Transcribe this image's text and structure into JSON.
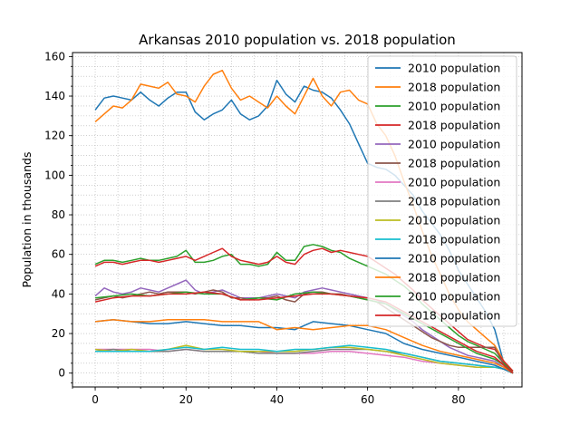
{
  "chart_data": {
    "type": "line",
    "title": "Arkansas 2010 population vs. 2018 population",
    "xlabel": "",
    "ylabel": "Population in thousands",
    "xlim": [
      -5,
      94
    ],
    "ylim": [
      -7,
      162
    ],
    "xticks": [
      0,
      20,
      40,
      60,
      80
    ],
    "yticks": [
      0,
      20,
      40,
      60,
      80,
      100,
      120,
      140,
      160
    ],
    "grid": true,
    "legend_position": "upper-right",
    "series": [
      {
        "name": "2010 population",
        "color": "#1f77b4",
        "x": [
          0,
          2,
          4,
          6,
          8,
          10,
          12,
          14,
          16,
          18,
          20,
          22,
          24,
          26,
          28,
          30,
          32,
          34,
          36,
          38,
          40,
          42,
          44,
          46,
          48,
          50,
          52,
          54,
          56,
          58,
          60,
          62,
          64,
          66,
          68,
          70,
          72,
          74,
          76,
          78,
          80,
          82,
          84,
          86,
          88,
          90,
          92
        ],
        "values": [
          133,
          139,
          140,
          139,
          138,
          142,
          138,
          135,
          139,
          142,
          142,
          132,
          128,
          131,
          133,
          138,
          131,
          128,
          130,
          135,
          148,
          141,
          137,
          145,
          143,
          142,
          139,
          133,
          126,
          116,
          106,
          104,
          103,
          100,
          95,
          90,
          82,
          76,
          70,
          62,
          52,
          45,
          38,
          31,
          22,
          5,
          0
        ]
      },
      {
        "name": "2018 population",
        "color": "#ff7f0e",
        "x": [
          0,
          2,
          4,
          6,
          8,
          10,
          12,
          14,
          16,
          18,
          20,
          22,
          24,
          26,
          28,
          30,
          32,
          34,
          36,
          38,
          40,
          42,
          44,
          46,
          48,
          50,
          52,
          54,
          56,
          58,
          60,
          62,
          64,
          66,
          68,
          70,
          72,
          74,
          76,
          78,
          80,
          82,
          84,
          86,
          88,
          90,
          92
        ],
        "values": [
          127,
          131,
          135,
          134,
          138,
          146,
          145,
          144,
          147,
          141,
          140,
          137,
          145,
          151,
          153,
          144,
          138,
          140,
          137,
          134,
          140,
          135,
          131,
          140,
          149,
          140,
          135,
          142,
          143,
          138,
          136,
          126,
          120,
          110,
          97,
          85,
          72,
          60,
          50,
          40,
          32,
          26,
          22,
          18,
          14,
          6,
          1
        ]
      },
      {
        "name": "2010 population",
        "color": "#2ca02c",
        "x": [
          0,
          2,
          4,
          6,
          8,
          10,
          12,
          14,
          16,
          18,
          20,
          22,
          24,
          26,
          28,
          30,
          32,
          34,
          36,
          38,
          40,
          42,
          44,
          46,
          48,
          50,
          52,
          54,
          56,
          58,
          60,
          62,
          64,
          66,
          68,
          70,
          72,
          74,
          76,
          78,
          80,
          82,
          84,
          86,
          88,
          90,
          92
        ],
        "values": [
          55,
          57,
          57,
          56,
          57,
          58,
          57,
          57,
          58,
          59,
          62,
          56,
          56,
          57,
          59,
          60,
          55,
          55,
          54,
          55,
          61,
          57,
          57,
          64,
          65,
          64,
          62,
          61,
          58,
          56,
          54,
          52,
          50,
          47,
          44,
          40,
          35,
          31,
          27,
          23,
          19,
          16,
          14,
          12,
          10,
          5,
          1
        ]
      },
      {
        "name": "2018 population",
        "color": "#d62728",
        "x": [
          0,
          2,
          4,
          6,
          8,
          10,
          12,
          14,
          16,
          18,
          20,
          22,
          24,
          26,
          28,
          30,
          32,
          34,
          36,
          38,
          40,
          42,
          44,
          46,
          48,
          50,
          52,
          54,
          56,
          58,
          60,
          62,
          64,
          66,
          68,
          70,
          72,
          74,
          76,
          78,
          80,
          82,
          84,
          86,
          88,
          90,
          92
        ],
        "values": [
          54,
          56,
          56,
          55,
          56,
          57,
          57,
          56,
          57,
          58,
          59,
          57,
          59,
          61,
          63,
          59,
          57,
          56,
          55,
          56,
          59,
          56,
          55,
          60,
          62,
          63,
          61,
          62,
          61,
          60,
          59,
          56,
          53,
          50,
          46,
          42,
          37,
          33,
          29,
          25,
          21,
          17,
          15,
          13,
          12,
          6,
          1
        ]
      },
      {
        "name": "2010 population",
        "color": "#9467bd",
        "x": [
          0,
          2,
          4,
          6,
          8,
          10,
          12,
          14,
          16,
          18,
          20,
          22,
          24,
          26,
          28,
          30,
          32,
          34,
          36,
          38,
          40,
          42,
          44,
          46,
          48,
          50,
          52,
          54,
          56,
          58,
          60,
          62,
          64,
          66,
          68,
          70,
          72,
          74,
          76,
          78,
          80,
          82,
          84,
          86,
          88,
          90,
          92
        ],
        "values": [
          39,
          43,
          41,
          40,
          41,
          43,
          42,
          41,
          43,
          45,
          47,
          42,
          40,
          41,
          42,
          40,
          38,
          38,
          38,
          39,
          40,
          39,
          38,
          41,
          42,
          43,
          42,
          41,
          40,
          39,
          38,
          37,
          35,
          32,
          29,
          26,
          22,
          19,
          16,
          13,
          11,
          9,
          8,
          7,
          6,
          3,
          0
        ]
      },
      {
        "name": "2018 population",
        "color": "#8c564b",
        "x": [
          0,
          2,
          4,
          6,
          8,
          10,
          12,
          14,
          16,
          18,
          20,
          22,
          24,
          26,
          28,
          30,
          32,
          34,
          36,
          38,
          40,
          42,
          44,
          46,
          48,
          50,
          52,
          54,
          56,
          58,
          60,
          62,
          64,
          66,
          68,
          70,
          72,
          74,
          76,
          78,
          80,
          82,
          84,
          86,
          88,
          90,
          92
        ],
        "values": [
          37,
          38,
          39,
          38,
          39,
          40,
          41,
          40,
          41,
          41,
          41,
          40,
          41,
          42,
          41,
          38,
          38,
          37,
          38,
          38,
          39,
          37,
          36,
          40,
          41,
          41,
          40,
          40,
          39,
          38,
          37,
          36,
          33,
          30,
          27,
          24,
          21,
          18,
          16,
          14,
          13,
          13,
          13,
          13,
          13,
          4,
          0
        ]
      },
      {
        "name": "2010 population",
        "color": "#e377c2",
        "x": [
          0,
          4,
          8,
          12,
          16,
          20,
          24,
          28,
          32,
          36,
          40,
          44,
          48,
          52,
          56,
          60,
          64,
          68,
          72,
          76,
          80,
          84,
          88,
          90,
          92
        ],
        "values": [
          12,
          12,
          12,
          12,
          11,
          12,
          11,
          11,
          11,
          11,
          10,
          10,
          10,
          11,
          11,
          10,
          9,
          8,
          6,
          5,
          4,
          3,
          3,
          2,
          0
        ]
      },
      {
        "name": "2018 population",
        "color": "#7f7f7f",
        "x": [
          0,
          4,
          8,
          12,
          16,
          20,
          24,
          28,
          32,
          36,
          40,
          44,
          48,
          52,
          56,
          60,
          64,
          68,
          72,
          76,
          80,
          84,
          88,
          90,
          92
        ],
        "values": [
          11,
          12,
          11,
          11,
          11,
          12,
          11,
          11,
          11,
          10,
          10,
          10,
          11,
          12,
          12,
          12,
          11,
          10,
          8,
          6,
          5,
          4,
          3,
          2,
          0
        ]
      },
      {
        "name": "2010 population",
        "color": "#bcbd22",
        "x": [
          0,
          4,
          8,
          12,
          16,
          20,
          24,
          28,
          32,
          36,
          40,
          44,
          48,
          52,
          56,
          60,
          64,
          68,
          72,
          76,
          80,
          84,
          88,
          90,
          92
        ],
        "values": [
          12,
          11,
          12,
          11,
          12,
          14,
          12,
          12,
          11,
          11,
          11,
          11,
          12,
          13,
          13,
          12,
          11,
          9,
          7,
          5,
          4,
          3,
          3,
          2,
          0
        ]
      },
      {
        "name": "2018 population",
        "color": "#17becf",
        "x": [
          0,
          4,
          8,
          12,
          16,
          20,
          24,
          28,
          32,
          36,
          40,
          44,
          48,
          52,
          56,
          60,
          64,
          68,
          72,
          76,
          80,
          84,
          88,
          90,
          92
        ],
        "values": [
          11,
          11,
          11,
          11,
          12,
          13,
          12,
          13,
          12,
          12,
          11,
          12,
          12,
          13,
          14,
          13,
          12,
          10,
          8,
          6,
          5,
          4,
          3,
          2,
          0
        ]
      },
      {
        "name": "2010 population",
        "color": "#1f77b4",
        "x": [
          0,
          4,
          8,
          12,
          16,
          20,
          24,
          28,
          32,
          36,
          40,
          44,
          48,
          52,
          56,
          60,
          64,
          68,
          72,
          76,
          80,
          84,
          88,
          90,
          92
        ],
        "values": [
          26,
          27,
          26,
          25,
          25,
          26,
          25,
          24,
          24,
          23,
          23,
          22,
          26,
          25,
          24,
          22,
          20,
          15,
          12,
          10,
          8,
          6,
          4,
          2,
          0
        ]
      },
      {
        "name": "2018 population",
        "color": "#ff7f0e",
        "x": [
          0,
          4,
          8,
          12,
          16,
          20,
          24,
          28,
          32,
          36,
          40,
          44,
          48,
          52,
          56,
          60,
          64,
          68,
          72,
          76,
          80,
          84,
          88,
          90,
          92
        ],
        "values": [
          26,
          27,
          26,
          26,
          27,
          27,
          27,
          26,
          26,
          26,
          22,
          23,
          22,
          23,
          24,
          24,
          22,
          18,
          14,
          11,
          9,
          7,
          5,
          3,
          0
        ]
      },
      {
        "name": "2010 population",
        "color": "#2ca02c",
        "x": [
          0,
          4,
          8,
          12,
          16,
          20,
          24,
          28,
          32,
          36,
          40,
          44,
          48,
          52,
          56,
          60,
          64,
          68,
          72,
          76,
          80,
          84,
          88,
          90,
          92
        ],
        "values": [
          38,
          39,
          40,
          39,
          40,
          41,
          40,
          40,
          37,
          38,
          37,
          40,
          41,
          40,
          39,
          37,
          35,
          30,
          25,
          20,
          15,
          10,
          7,
          4,
          0
        ]
      },
      {
        "name": "2018 population",
        "color": "#d62728",
        "x": [
          0,
          4,
          8,
          12,
          16,
          20,
          24,
          28,
          32,
          36,
          40,
          44,
          48,
          52,
          56,
          60,
          64,
          68,
          72,
          76,
          80,
          84,
          88,
          90,
          92
        ],
        "values": [
          36,
          38,
          39,
          39,
          40,
          40,
          41,
          40,
          37,
          37,
          38,
          39,
          40,
          40,
          39,
          38,
          36,
          31,
          26,
          21,
          16,
          11,
          8,
          4,
          0
        ]
      }
    ]
  }
}
